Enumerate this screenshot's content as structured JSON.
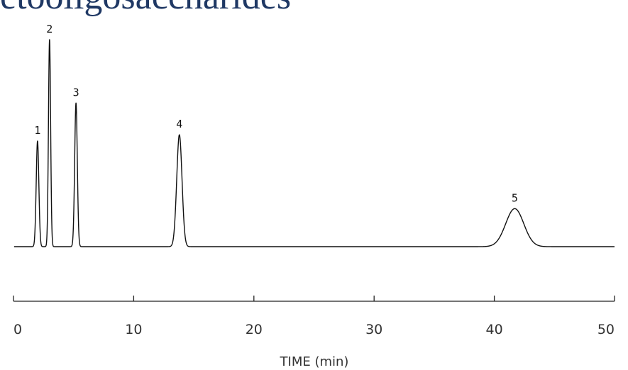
{
  "header": {
    "title": "etooligosaccharides"
  },
  "chart_data": {
    "type": "line",
    "title": "etooligosaccharides",
    "xlabel": "TIME (min)",
    "ylabel": "",
    "xlim": [
      0,
      50
    ],
    "ylim": [
      0,
      1
    ],
    "grid": false,
    "x_ticks": [
      "0",
      "10",
      "20",
      "30",
      "40",
      "50"
    ],
    "series": [
      {
        "color": "#111111",
        "baseline": 0.0,
        "peaks": [
          {
            "label": "1",
            "time": 2.0,
            "height": 0.5,
            "width": 0.11
          },
          {
            "label": "2",
            "time": 3.0,
            "height": 0.98,
            "width": 0.09
          },
          {
            "label": "3",
            "time": 5.2,
            "height": 0.68,
            "width": 0.11
          },
          {
            "label": "4",
            "time": 13.8,
            "height": 0.53,
            "width": 0.22
          },
          {
            "label": "5",
            "time": 41.7,
            "height": 0.18,
            "width": 0.75
          }
        ]
      }
    ]
  }
}
